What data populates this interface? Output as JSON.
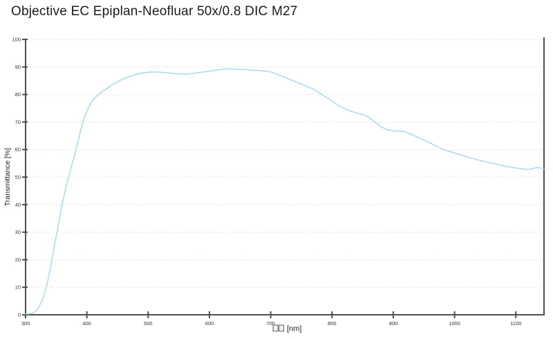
{
  "title": "Objective EC Epiplan-Neofluar 50x/0.8 DIC M27",
  "colors": {
    "background": "#ffffff",
    "title_text": "#1a1a1a",
    "axis": "#4d4d4d",
    "grid": "#cfcfcf",
    "tick_text": "#333333",
    "curve": "#a6d8f0",
    "glyph_box": "#444444"
  },
  "chart_data": {
    "type": "line",
    "title": "Objective EC Epiplan-Neofluar 50x/0.8 DIC M27",
    "xlabel": "□□ [nm]",
    "xlabel_boxes": 2,
    "xlabel_unit": "[nm]",
    "ylabel": "Transmittance [%]",
    "xlim": [
      300,
      1146
    ],
    "ylim": [
      0,
      100
    ],
    "x_ticks": [
      300,
      400,
      500,
      600,
      700,
      800,
      900,
      1000,
      1100
    ],
    "y_ticks": [
      0,
      10,
      20,
      30,
      40,
      50,
      60,
      70,
      80,
      90,
      100
    ],
    "grid": "horizontal-dotted",
    "legend": "none",
    "series": [
      {
        "name": "Transmittance",
        "color": "#a6d8f0",
        "points": [
          [
            300,
            0.3
          ],
          [
            305,
            0.3
          ],
          [
            310,
            0.5
          ],
          [
            315,
            1
          ],
          [
            320,
            2.2
          ],
          [
            325,
            4.3
          ],
          [
            330,
            7
          ],
          [
            335,
            11
          ],
          [
            340,
            16.5
          ],
          [
            345,
            22.5
          ],
          [
            350,
            28.5
          ],
          [
            355,
            34.5
          ],
          [
            360,
            40.5
          ],
          [
            365,
            45.5
          ],
          [
            370,
            50
          ],
          [
            375,
            54
          ],
          [
            380,
            58
          ],
          [
            385,
            62.5
          ],
          [
            390,
            67
          ],
          [
            395,
            71
          ],
          [
            400,
            74
          ],
          [
            405,
            76.3
          ],
          [
            410,
            78
          ],
          [
            415,
            79.2
          ],
          [
            420,
            80.2
          ],
          [
            430,
            81.8
          ],
          [
            440,
            83.3
          ],
          [
            450,
            84.6
          ],
          [
            460,
            85.7
          ],
          [
            470,
            86.6
          ],
          [
            480,
            87.3
          ],
          [
            490,
            87.8
          ],
          [
            500,
            88.1
          ],
          [
            510,
            88.2
          ],
          [
            520,
            88.1
          ],
          [
            530,
            87.9
          ],
          [
            540,
            87.7
          ],
          [
            550,
            87.5
          ],
          [
            560,
            87.4
          ],
          [
            570,
            87.6
          ],
          [
            580,
            87.9
          ],
          [
            590,
            88.2
          ],
          [
            600,
            88.5
          ],
          [
            610,
            88.8
          ],
          [
            620,
            89.1
          ],
          [
            630,
            89.3
          ],
          [
            640,
            89.3
          ],
          [
            650,
            89.1
          ],
          [
            660,
            89
          ],
          [
            670,
            88.8
          ],
          [
            680,
            88.7
          ],
          [
            690,
            88.5
          ],
          [
            700,
            88.2
          ],
          [
            710,
            87.4
          ],
          [
            720,
            86.5
          ],
          [
            730,
            85.6
          ],
          [
            740,
            84.7
          ],
          [
            750,
            83.8
          ],
          [
            760,
            82.9
          ],
          [
            770,
            81.9
          ],
          [
            780,
            80.5
          ],
          [
            790,
            79.1
          ],
          [
            800,
            77.7
          ],
          [
            810,
            76.1
          ],
          [
            820,
            74.9
          ],
          [
            830,
            74
          ],
          [
            840,
            73.3
          ],
          [
            850,
            72.7
          ],
          [
            858,
            72
          ],
          [
            870,
            70
          ],
          [
            880,
            68.3
          ],
          [
            890,
            67.2
          ],
          [
            900,
            66.8
          ],
          [
            910,
            66.7
          ],
          [
            918,
            66.6
          ],
          [
            930,
            65.5
          ],
          [
            940,
            64.5
          ],
          [
            950,
            63.5
          ],
          [
            960,
            62.4
          ],
          [
            970,
            61.3
          ],
          [
            980,
            60.2
          ],
          [
            990,
            59.4
          ],
          [
            1000,
            58.8
          ],
          [
            1010,
            58.1
          ],
          [
            1020,
            57.4
          ],
          [
            1030,
            56.7
          ],
          [
            1040,
            56.1
          ],
          [
            1050,
            55.6
          ],
          [
            1060,
            55.1
          ],
          [
            1070,
            54.6
          ],
          [
            1080,
            54.1
          ],
          [
            1090,
            53.7
          ],
          [
            1100,
            53.3
          ],
          [
            1110,
            53
          ],
          [
            1118,
            52.8
          ],
          [
            1126,
            53
          ],
          [
            1133,
            53.5
          ],
          [
            1140,
            53.3
          ],
          [
            1146,
            53.2
          ]
        ]
      }
    ]
  }
}
